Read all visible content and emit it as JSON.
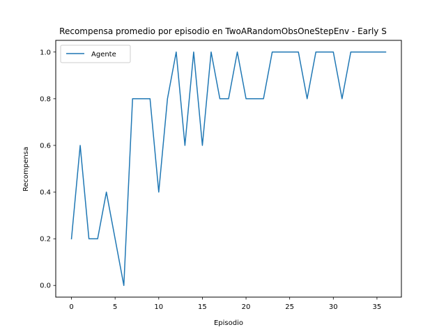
{
  "chart_data": {
    "type": "line",
    "title": "Recompensa promedio por episodio en TwoARandomObsOneStepEnv - Early S",
    "xlabel": "Episodio",
    "ylabel": "Recompensa",
    "xlim": [
      -1.8,
      37.8
    ],
    "ylim": [
      -0.05,
      1.05
    ],
    "xticks": [
      0,
      5,
      10,
      15,
      20,
      25,
      30,
      35
    ],
    "yticks": [
      0.0,
      0.2,
      0.4,
      0.6,
      0.8,
      1.0
    ],
    "ytick_labels": [
      "0.0",
      "0.2",
      "0.4",
      "0.6",
      "0.8",
      "1.0"
    ],
    "grid": false,
    "legend": "top-left",
    "series": [
      {
        "name": "Agente",
        "color": "#1f77b4",
        "x": [
          0,
          1,
          2,
          3,
          4,
          5,
          6,
          7,
          8,
          9,
          10,
          11,
          12,
          13,
          14,
          15,
          16,
          17,
          18,
          19,
          20,
          21,
          22,
          23,
          24,
          25,
          26,
          27,
          28,
          29,
          30,
          31,
          32,
          33,
          34,
          35,
          36
        ],
        "values": [
          0.2,
          0.6,
          0.2,
          0.2,
          0.4,
          0.2,
          0.0,
          0.8,
          0.8,
          0.8,
          0.4,
          0.8,
          1.0,
          0.6,
          1.0,
          0.6,
          1.0,
          0.8,
          0.8,
          1.0,
          0.8,
          0.8,
          0.8,
          1.0,
          1.0,
          1.0,
          1.0,
          0.8,
          1.0,
          1.0,
          1.0,
          0.8,
          1.0,
          1.0,
          1.0,
          1.0,
          1.0
        ]
      }
    ]
  }
}
